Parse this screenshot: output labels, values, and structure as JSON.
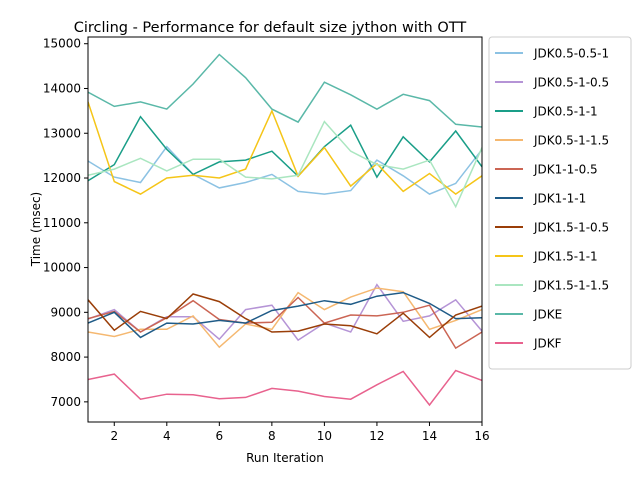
{
  "chart_data": {
    "type": "line",
    "title": "Circling - Performance for default size jython with OTT",
    "xlabel": "Run Iteration",
    "ylabel": "Time (msec)",
    "xlim": [
      1,
      16
    ],
    "ylim": [
      6550,
      15150
    ],
    "xticks": [
      2,
      4,
      6,
      8,
      10,
      12,
      14,
      16
    ],
    "yticks": [
      7000,
      8000,
      9000,
      10000,
      11000,
      12000,
      13000,
      14000,
      15000
    ],
    "grid": false,
    "legend_position": "outside-right",
    "x": [
      1,
      2,
      3,
      4,
      5,
      6,
      7,
      8,
      9,
      10,
      11,
      12,
      13,
      14,
      15,
      16
    ],
    "series": [
      {
        "name": "JDK0.5-0.5-1",
        "color": "#8cc2e3",
        "values": [
          12380,
          12020,
          11900,
          12700,
          12080,
          11780,
          11900,
          12080,
          11700,
          11640,
          11720,
          12400,
          12050,
          11640,
          11880,
          12640
        ]
      },
      {
        "name": "JDK0.5-1-0.5",
        "color": "#b594d6",
        "values": [
          8850,
          9060,
          8560,
          8900,
          8900,
          8400,
          9060,
          9160,
          8380,
          8760,
          8560,
          9620,
          8800,
          8920,
          9280,
          8580
        ]
      },
      {
        "name": "JDK0.5-1-1",
        "color": "#1a9e88",
        "values": [
          11940,
          12300,
          13370,
          12640,
          12080,
          12360,
          12400,
          12600,
          12040,
          12700,
          13180,
          12020,
          12920,
          12360,
          13050,
          12250
        ]
      },
      {
        "name": "JDK0.5-1-1.5",
        "color": "#f5b870",
        "values": [
          8560,
          8460,
          8620,
          8620,
          8920,
          8220,
          8740,
          8620,
          9440,
          9060,
          9340,
          9540,
          9460,
          8620,
          8820,
          9060
        ]
      },
      {
        "name": "JDK1-1-0.5",
        "color": "#cb6554",
        "values": [
          8860,
          9020,
          8560,
          8880,
          9260,
          8840,
          8760,
          8780,
          9330,
          8760,
          8940,
          8920,
          9000,
          9160,
          8200,
          8560
        ]
      },
      {
        "name": "JDK1-1-1",
        "color": "#1f5b87",
        "values": [
          8760,
          9000,
          8440,
          8760,
          8740,
          8820,
          8760,
          9040,
          9140,
          9260,
          9180,
          9360,
          9440,
          9200,
          8860,
          8880
        ]
      },
      {
        "name": "JDK1.5-1-0.5",
        "color": "#9a3e08",
        "values": [
          9280,
          8600,
          9020,
          8860,
          9410,
          9240,
          8860,
          8560,
          8580,
          8740,
          8700,
          8520,
          8980,
          8440,
          8940,
          9140
        ]
      },
      {
        "name": "JDK1.5-1-1",
        "color": "#f5c518",
        "values": [
          13700,
          11920,
          11640,
          12000,
          12060,
          12000,
          12200,
          13500,
          12040,
          12680,
          11820,
          12320,
          11700,
          12100,
          11640,
          12050
        ]
      },
      {
        "name": "JDK1.5-1-1.5",
        "color": "#aae6c0",
        "values": [
          12060,
          12200,
          12440,
          12160,
          12420,
          12420,
          12020,
          11980,
          12060,
          13260,
          12600,
          12300,
          12200,
          12400,
          11360,
          12680
        ]
      },
      {
        "name": "JDKE",
        "color": "#5ab8a8",
        "values": [
          13920,
          13600,
          13700,
          13540,
          14100,
          14760,
          14240,
          13540,
          13250,
          14140,
          13860,
          13540,
          13870,
          13730,
          13200,
          13140
        ]
      },
      {
        "name": "JDKF",
        "color": "#e8628e",
        "values": [
          7500,
          7620,
          7060,
          7170,
          7160,
          7070,
          7100,
          7300,
          7240,
          7120,
          7060,
          7380,
          7680,
          6930,
          7700,
          7480
        ]
      }
    ]
  }
}
